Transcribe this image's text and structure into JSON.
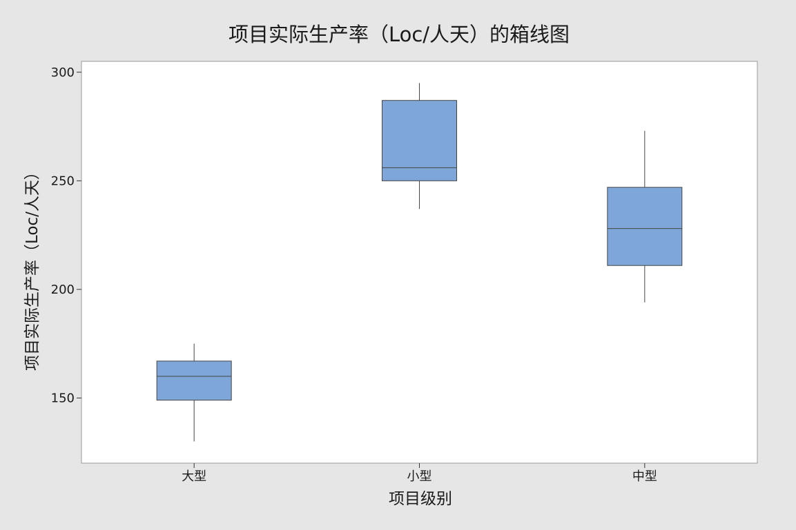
{
  "chart_data": {
    "type": "boxplot",
    "title": "项目实际生产率（Loc/人天）的箱线图",
    "xlabel": "项目级别",
    "ylabel": "项目实际生产率（Loc/人天）",
    "categories": [
      "大型",
      "小型",
      "中型"
    ],
    "boxes": [
      {
        "category": "大型",
        "min": 130,
        "q1": 149,
        "median": 160,
        "q3": 167,
        "max": 175
      },
      {
        "category": "小型",
        "min": 237,
        "q1": 250,
        "median": 256,
        "q3": 287,
        "max": 295
      },
      {
        "category": "中型",
        "min": 194,
        "q1": 211,
        "median": 228,
        "q3": 247,
        "max": 273
      }
    ],
    "ylim": [
      120,
      305
    ],
    "yticks": [
      150,
      200,
      250,
      300
    ],
    "grid": false,
    "box_color": "#7ea6d8",
    "box_stroke": "#444444"
  }
}
